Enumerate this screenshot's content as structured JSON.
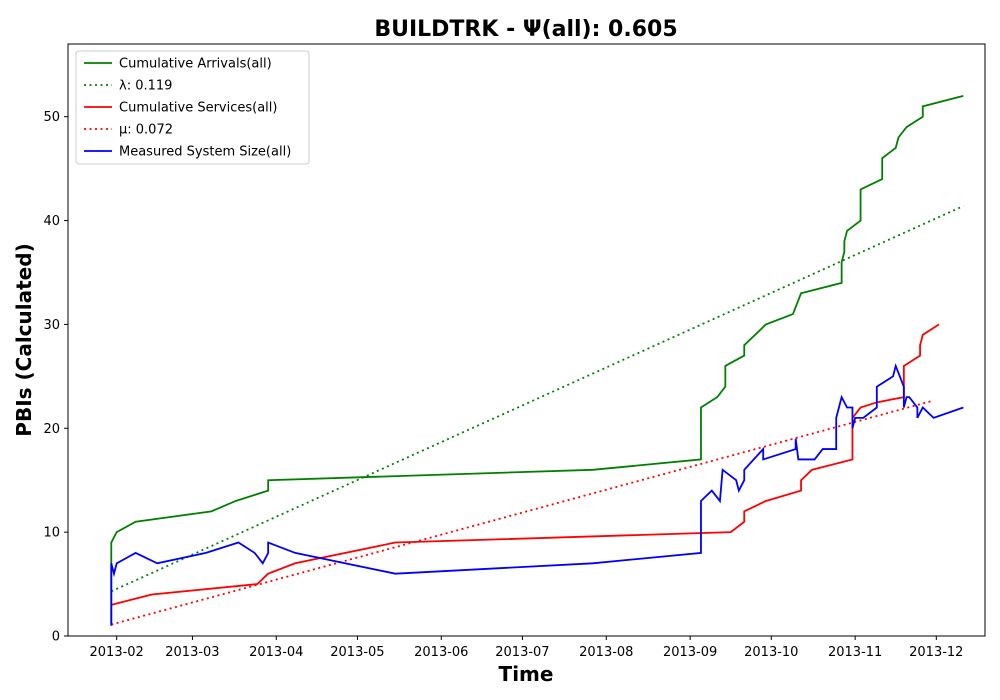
{
  "chart_data": {
    "type": "line",
    "title": "BUILDTRK -  Ψ(all): 0.605",
    "xlabel": "Time",
    "ylabel": "PBIs (Calculated)",
    "x_type": "date",
    "xlim": [
      "2013-01-14",
      "2013-12-19"
    ],
    "ylim": [
      0,
      57
    ],
    "xticks": [
      "2013-02",
      "2013-03",
      "2013-04",
      "2013-05",
      "2013-06",
      "2013-07",
      "2013-08",
      "2013-09",
      "2013-10",
      "2013-11",
      "2013-12"
    ],
    "yticks": [
      0,
      10,
      20,
      30,
      40,
      50
    ],
    "grid": false,
    "legend_position": "top-left",
    "series": [
      {
        "name": "Cumulative Arrivals(all)",
        "color": "#008000",
        "style": "solid",
        "points": [
          [
            "2013-01-30",
            1
          ],
          [
            "2013-01-30",
            9
          ],
          [
            "2013-02-01",
            10
          ],
          [
            "2013-02-08",
            11
          ],
          [
            "2013-03-08",
            12
          ],
          [
            "2013-03-17",
            13
          ],
          [
            "2013-03-29",
            14
          ],
          [
            "2013-03-29",
            15
          ],
          [
            "2013-07-27",
            16
          ],
          [
            "2013-09-05",
            17
          ],
          [
            "2013-09-05",
            22
          ],
          [
            "2013-09-11",
            23
          ],
          [
            "2013-09-14",
            24
          ],
          [
            "2013-09-14",
            26
          ],
          [
            "2013-09-21",
            27
          ],
          [
            "2013-09-21",
            28
          ],
          [
            "2013-09-29",
            30
          ],
          [
            "2013-10-09",
            31
          ],
          [
            "2013-10-12",
            33
          ],
          [
            "2013-10-27",
            34
          ],
          [
            "2013-10-27",
            36
          ],
          [
            "2013-10-28",
            37
          ],
          [
            "2013-10-28",
            38
          ],
          [
            "2013-10-29",
            39
          ],
          [
            "2013-11-03",
            40
          ],
          [
            "2013-11-03",
            43
          ],
          [
            "2013-11-11",
            44
          ],
          [
            "2013-11-11",
            46
          ],
          [
            "2013-11-16",
            47
          ],
          [
            "2013-11-17",
            48
          ],
          [
            "2013-11-20",
            49
          ],
          [
            "2013-11-26",
            50
          ],
          [
            "2013-11-26",
            51
          ],
          [
            "2013-12-11",
            52
          ]
        ]
      },
      {
        "name": "λ: 0.119",
        "color": "#008000",
        "style": "dotted",
        "points": [
          [
            "2013-01-30",
            4.3
          ],
          [
            "2013-12-11",
            41.4
          ]
        ]
      },
      {
        "name": "Cumulative Services(all)",
        "color": "#ff0000",
        "style": "solid",
        "points": [
          [
            "2013-01-30",
            3
          ],
          [
            "2013-02-14",
            4
          ],
          [
            "2013-03-25",
            5
          ],
          [
            "2013-03-29",
            6
          ],
          [
            "2013-04-08",
            7
          ],
          [
            "2013-05-15",
            9
          ],
          [
            "2013-09-16",
            10
          ],
          [
            "2013-09-21",
            11
          ],
          [
            "2013-09-21",
            12
          ],
          [
            "2013-09-29",
            13
          ],
          [
            "2013-10-12",
            14
          ],
          [
            "2013-10-12",
            15
          ],
          [
            "2013-10-16",
            16
          ],
          [
            "2013-10-31",
            17
          ],
          [
            "2013-10-31",
            21
          ],
          [
            "2013-11-03",
            22
          ],
          [
            "2013-11-09",
            22.5
          ],
          [
            "2013-11-19",
            23
          ],
          [
            "2013-11-19",
            26
          ],
          [
            "2013-11-25",
            27
          ],
          [
            "2013-11-25",
            28
          ],
          [
            "2013-11-26",
            29
          ],
          [
            "2013-12-02",
            30
          ]
        ]
      },
      {
        "name": "μ: 0.072",
        "color": "#ff0000",
        "style": "dotted",
        "points": [
          [
            "2013-01-30",
            1.1
          ],
          [
            "2013-11-29",
            22.6
          ]
        ]
      },
      {
        "name": "Measured System Size(all)",
        "color": "#0000ff",
        "style": "solid",
        "points": [
          [
            "2013-01-30",
            6
          ],
          [
            "2013-01-30",
            1
          ],
          [
            "2013-01-30",
            7
          ],
          [
            "2013-01-31",
            6
          ],
          [
            "2013-02-01",
            7
          ],
          [
            "2013-02-08",
            8
          ],
          [
            "2013-02-16",
            7
          ],
          [
            "2013-03-06",
            8
          ],
          [
            "2013-03-18",
            9
          ],
          [
            "2013-03-24",
            8
          ],
          [
            "2013-03-27",
            7
          ],
          [
            "2013-03-29",
            8
          ],
          [
            "2013-03-29",
            9
          ],
          [
            "2013-04-08",
            8
          ],
          [
            "2013-05-15",
            6
          ],
          [
            "2013-07-27",
            7
          ],
          [
            "2013-09-05",
            8
          ],
          [
            "2013-09-05",
            13
          ],
          [
            "2013-09-09",
            14
          ],
          [
            "2013-09-12",
            13
          ],
          [
            "2013-09-13",
            16
          ],
          [
            "2013-09-18",
            15
          ],
          [
            "2013-09-19",
            14
          ],
          [
            "2013-09-21",
            15
          ],
          [
            "2013-09-21",
            16
          ],
          [
            "2013-09-28",
            18
          ],
          [
            "2013-09-28",
            17
          ],
          [
            "2013-10-10",
            18
          ],
          [
            "2013-10-10",
            19
          ],
          [
            "2013-10-11",
            17
          ],
          [
            "2013-10-17",
            17
          ],
          [
            "2013-10-20",
            18
          ],
          [
            "2013-10-25",
            18
          ],
          [
            "2013-10-25",
            21
          ],
          [
            "2013-10-27",
            23
          ],
          [
            "2013-10-29",
            22
          ],
          [
            "2013-10-31",
            22
          ],
          [
            "2013-10-31",
            20
          ],
          [
            "2013-11-01",
            21
          ],
          [
            "2013-11-04",
            21
          ],
          [
            "2013-11-09",
            22
          ],
          [
            "2013-11-09",
            24
          ],
          [
            "2013-11-15",
            25
          ],
          [
            "2013-11-16",
            26
          ],
          [
            "2013-11-19",
            24
          ],
          [
            "2013-11-19",
            22
          ],
          [
            "2013-11-20",
            23
          ],
          [
            "2013-11-21",
            23
          ],
          [
            "2013-11-24",
            22
          ],
          [
            "2013-11-24",
            21
          ],
          [
            "2013-11-26",
            22
          ],
          [
            "2013-11-30",
            21
          ],
          [
            "2013-12-11",
            22
          ]
        ]
      }
    ]
  }
}
